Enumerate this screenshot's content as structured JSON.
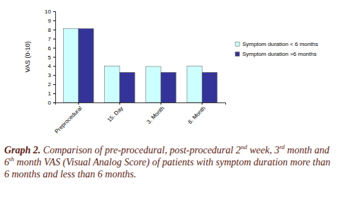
{
  "chart_data": {
    "type": "bar",
    "y_label": "VAS (0-10)",
    "categories": [
      "Preprocedural",
      "15. Day",
      "3. Month",
      "6. Month"
    ],
    "series": [
      {
        "name": "Symptom duration < 6 months",
        "color": "#ccffff",
        "values": [
          8.1,
          4.0,
          3.95,
          4.0
        ]
      },
      {
        "name": "Symptom duration >6 months",
        "color": "#333399",
        "values": [
          8.1,
          3.3,
          3.3,
          3.3
        ]
      }
    ],
    "ylim": [
      0,
      10
    ],
    "yticks": [
      0,
      1,
      2,
      3,
      4,
      5,
      6,
      7,
      8,
      9,
      10
    ],
    "grid": false,
    "legend": "right",
    "caption": [
      "Graph 2.",
      " Comparison of pre-procedural, post-procedural 2",
      "nd",
      " week, 3",
      "rd",
      " month and 6",
      "th",
      " month VAS (Visual Analog Score) of patients with symptom duration more than 6 months and less than 6 months."
    ]
  }
}
